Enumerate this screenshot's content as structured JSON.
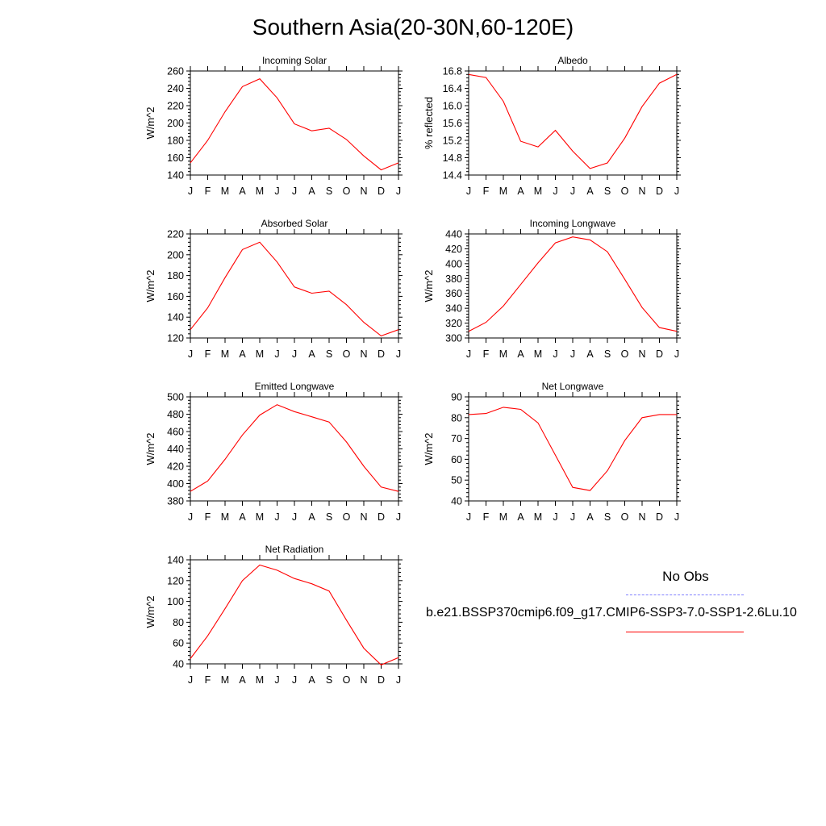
{
  "title": "Southern Asia(20-30N,60-120E)",
  "legend": {
    "obs_label": "No Obs",
    "model_label": "b.e21.BSSP370cmip6.f09_g17.CMIP6-SSP3-7.0-SSP1-2.6Lu.10",
    "obs_color": "#7f7fff",
    "model_color": "#ff0000"
  },
  "chart_data": [
    {
      "type": "line",
      "title": "Incoming Solar",
      "ylabel": "W/m^2",
      "categories": [
        "J",
        "F",
        "M",
        "A",
        "M",
        "J",
        "J",
        "A",
        "S",
        "O",
        "N",
        "D",
        "J"
      ],
      "ylim": [
        140,
        260
      ],
      "yticks": [
        140,
        160,
        180,
        200,
        220,
        240,
        260
      ],
      "ytick_labels": [
        "140",
        "160",
        "180",
        "200",
        "220",
        "240",
        "260"
      ],
      "values": [
        154,
        180,
        213,
        242,
        251,
        229,
        199,
        191,
        194,
        181,
        162,
        146,
        154
      ]
    },
    {
      "type": "line",
      "title": "Albedo",
      "ylabel": "% reflected",
      "categories": [
        "J",
        "F",
        "M",
        "A",
        "M",
        "J",
        "J",
        "A",
        "S",
        "O",
        "N",
        "D",
        "J"
      ],
      "ylim": [
        14.4,
        16.8
      ],
      "yticks": [
        14.4,
        14.8,
        15.2,
        15.6,
        16.0,
        16.4,
        16.8
      ],
      "ytick_labels": [
        "14.4",
        "14.8",
        "15.2",
        "15.6",
        "16.0",
        "16.4",
        "16.8"
      ],
      "values": [
        16.72,
        16.65,
        16.1,
        15.18,
        15.05,
        15.43,
        14.95,
        14.55,
        14.68,
        15.25,
        15.98,
        16.52,
        16.72
      ]
    },
    {
      "type": "line",
      "title": "Absorbed Solar",
      "ylabel": "W/m^2",
      "categories": [
        "J",
        "F",
        "M",
        "A",
        "M",
        "J",
        "J",
        "A",
        "S",
        "O",
        "N",
        "D",
        "J"
      ],
      "ylim": [
        120,
        220
      ],
      "yticks": [
        120,
        140,
        160,
        180,
        200,
        220
      ],
      "ytick_labels": [
        "120",
        "140",
        "160",
        "180",
        "200",
        "220"
      ],
      "values": [
        128,
        149,
        178,
        205,
        212,
        193,
        169,
        163,
        165,
        152,
        135,
        122,
        128
      ]
    },
    {
      "type": "line",
      "title": "Incoming Longwave",
      "ylabel": "W/m^2",
      "categories": [
        "J",
        "F",
        "M",
        "A",
        "M",
        "J",
        "J",
        "A",
        "S",
        "O",
        "N",
        "D",
        "J"
      ],
      "ylim": [
        300,
        440
      ],
      "yticks": [
        300,
        320,
        340,
        360,
        380,
        400,
        420,
        440
      ],
      "ytick_labels": [
        "300",
        "320",
        "340",
        "360",
        "380",
        "400",
        "420",
        "440"
      ],
      "values": [
        309,
        321,
        343,
        372,
        401,
        428,
        436,
        432,
        416,
        379,
        341,
        314,
        309
      ]
    },
    {
      "type": "line",
      "title": "Emitted Longwave",
      "ylabel": "W/m^2",
      "categories": [
        "J",
        "F",
        "M",
        "A",
        "M",
        "J",
        "J",
        "A",
        "S",
        "O",
        "N",
        "D",
        "J"
      ],
      "ylim": [
        380,
        500
      ],
      "yticks": [
        380,
        400,
        420,
        440,
        460,
        480,
        500
      ],
      "ytick_labels": [
        "380",
        "400",
        "420",
        "440",
        "460",
        "480",
        "500"
      ],
      "values": [
        391,
        403,
        428,
        456,
        479,
        491,
        483,
        477,
        471,
        448,
        420,
        396,
        391
      ]
    },
    {
      "type": "line",
      "title": "Net Longwave",
      "ylabel": "W/m^2",
      "categories": [
        "J",
        "F",
        "M",
        "A",
        "M",
        "J",
        "J",
        "A",
        "S",
        "O",
        "N",
        "D",
        "J"
      ],
      "ylim": [
        40,
        90
      ],
      "yticks": [
        40,
        50,
        60,
        70,
        80,
        90
      ],
      "ytick_labels": [
        "40",
        "50",
        "60",
        "70",
        "80",
        "90"
      ],
      "values": [
        81.5,
        82,
        85,
        84,
        77.5,
        62,
        46.5,
        45,
        54.5,
        69,
        80,
        81.5,
        81.5
      ]
    },
    {
      "type": "line",
      "title": "Net Radiation",
      "ylabel": "W/m^2",
      "categories": [
        "J",
        "F",
        "M",
        "A",
        "M",
        "J",
        "J",
        "A",
        "S",
        "O",
        "N",
        "D",
        "J"
      ],
      "ylim": [
        40,
        140
      ],
      "yticks": [
        40,
        60,
        80,
        100,
        120,
        140
      ],
      "ytick_labels": [
        "40",
        "60",
        "80",
        "100",
        "120",
        "140"
      ],
      "values": [
        45,
        67,
        93,
        120,
        135,
        130,
        122,
        117,
        110,
        82,
        55,
        39,
        46
      ]
    }
  ]
}
